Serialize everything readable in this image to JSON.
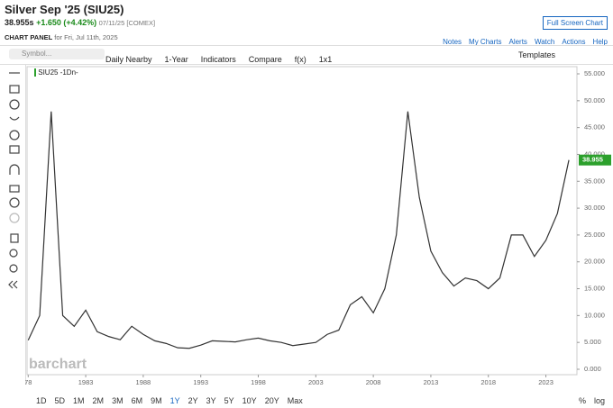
{
  "header": {
    "title": "Silver Sep '25 (SIU25)",
    "price": "38.955s",
    "change": "+1.650 (+4.42%)",
    "date": "07/11/25 [COMEX]",
    "panel": "CHART PANEL",
    "panel_date": "for Fri, Jul 11th, 2025",
    "fullscreen": "Full Screen Chart",
    "links": [
      "Notes",
      "My Charts",
      "Alerts",
      "Watch",
      "Actions",
      "Help"
    ]
  },
  "toolbar": {
    "symbol": "Symbol...",
    "items": [
      "Daily Nearby",
      "1-Year",
      "Indicators",
      "Compare",
      "f(x)",
      "1x1"
    ],
    "templates": "Templates"
  },
  "legend": "SIU25 -1Dn-",
  "watermark": "barchart",
  "ranges": [
    "1D",
    "5D",
    "1M",
    "2M",
    "3M",
    "6M",
    "9M",
    "1Y",
    "2Y",
    "3Y",
    "5Y",
    "10Y",
    "20Y",
    "Max"
  ],
  "scale_options": [
    "%",
    "log"
  ],
  "chart_data": {
    "type": "line",
    "x": [
      1978,
      1979,
      1980,
      1981,
      1982,
      1983,
      1984,
      1985,
      1986,
      1987,
      1988,
      1989,
      1990,
      1991,
      1992,
      1993,
      1994,
      1995,
      1996,
      1997,
      1998,
      1999,
      2000,
      2001,
      2002,
      2003,
      2004,
      2005,
      2006,
      2007,
      2008,
      2009,
      2010,
      2011,
      2012,
      2013,
      2014,
      2015,
      2016,
      2017,
      2018,
      2019,
      2020,
      2021,
      2022,
      2023,
      2024,
      2025
    ],
    "series": [
      {
        "name": "SIU25",
        "color": "#333333",
        "values": [
          5.4,
          10,
          48,
          10,
          8,
          11,
          7,
          6.1,
          5.5,
          8,
          6.5,
          5.3,
          4.8,
          4,
          3.9,
          4.5,
          5.3,
          5.2,
          5.1,
          5.5,
          5.8,
          5.3,
          5,
          4.4,
          4.7,
          5,
          6.5,
          7.3,
          12,
          13.5,
          10.5,
          15,
          25,
          48,
          32,
          22,
          18,
          15.5,
          17,
          16.5,
          15,
          17,
          25,
          25,
          21,
          24,
          29,
          38.955
        ]
      }
    ],
    "xlim": [
      1977.9,
      2025.7
    ],
    "xticks": [
      {
        "value": 1978,
        "label": "78"
      },
      1983,
      1988,
      1993,
      1998,
      2003,
      2008,
      2013,
      2018,
      2023
    ],
    "ylim": [
      0,
      55
    ],
    "yticks": [
      {
        "value": 0,
        "label": "0.000"
      },
      {
        "value": 5,
        "label": "5.000"
      },
      {
        "value": 10,
        "label": "10.000"
      },
      {
        "value": 15,
        "label": "15.000"
      },
      {
        "value": 20,
        "label": "20.000"
      },
      {
        "value": 25,
        "label": "25.000"
      },
      {
        "value": 30,
        "label": "30.000"
      },
      {
        "value": 35,
        "label": "35.000"
      },
      {
        "value": 40,
        "label": "40.000"
      },
      {
        "value": 45,
        "label": "45.000"
      },
      {
        "value": 50,
        "label": "50.000"
      },
      {
        "value": 55,
        "label": "55.000"
      }
    ],
    "tag_color": "#2ca02c"
  }
}
